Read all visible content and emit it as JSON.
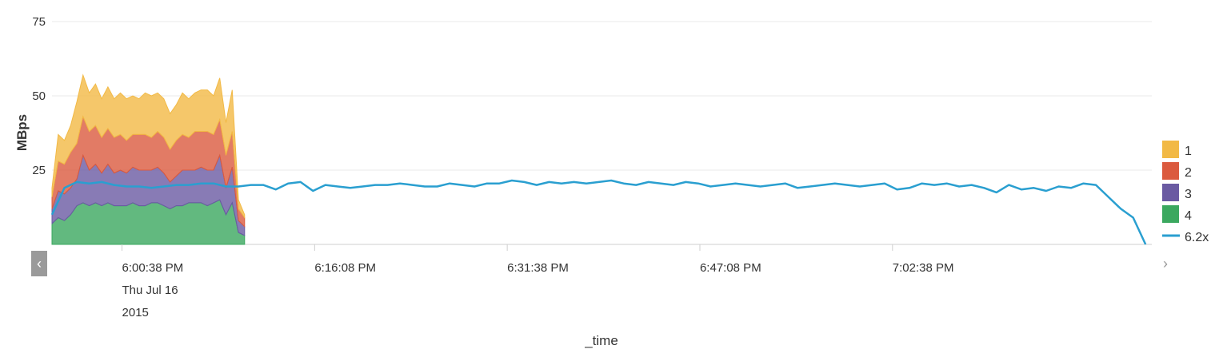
{
  "chart_data": {
    "type": "area",
    "stacked": true,
    "xlabel": "_time",
    "ylabel": "MBps",
    "ylim": [
      0,
      75
    ],
    "y_ticks": [
      "25",
      "50",
      "75"
    ],
    "x_range": [
      "5:55:00 PM",
      "7:23:30 PM"
    ],
    "x_ticks": [
      {
        "t": "6:00:38 PM",
        "lines": [
          "6:00:38 PM",
          "Thu Jul 16",
          "2015"
        ]
      },
      {
        "t": "6:16:08 PM",
        "lines": [
          "6:16:08 PM"
        ]
      },
      {
        "t": "6:31:38 PM",
        "lines": [
          "6:31:38 PM"
        ]
      },
      {
        "t": "6:47:08 PM",
        "lines": [
          "6:47:08 PM"
        ]
      },
      {
        "t": "7:02:38 PM",
        "lines": [
          "7:02:38 PM"
        ]
      }
    ],
    "grid": true,
    "legend_position": "right",
    "area_x": [
      "5:55:00 PM",
      "5:55:30 PM",
      "5:56:00 PM",
      "5:56:30 PM",
      "5:57:00 PM",
      "5:57:30 PM",
      "5:58:00 PM",
      "5:58:30 PM",
      "5:59:00 PM",
      "5:59:30 PM",
      "6:00:00 PM",
      "6:00:30 PM",
      "6:01:00 PM",
      "6:01:30 PM",
      "6:02:00 PM",
      "6:02:30 PM",
      "6:03:00 PM",
      "6:03:30 PM",
      "6:04:00 PM",
      "6:04:30 PM",
      "6:05:00 PM",
      "6:05:30 PM",
      "6:06:00 PM",
      "6:06:30 PM",
      "6:07:00 PM",
      "6:07:30 PM",
      "6:08:00 PM",
      "6:08:30 PM",
      "6:09:00 PM",
      "6:09:30 PM",
      "6:10:00 PM",
      "6:10:30 PM"
    ],
    "area_series": [
      {
        "name": "4",
        "color": "#3ba85f",
        "values": [
          7,
          9,
          8,
          10,
          13,
          14,
          13,
          14,
          13,
          14,
          13,
          13,
          13,
          14,
          13,
          13,
          14,
          14,
          13,
          12,
          13,
          13,
          14,
          14,
          14,
          13,
          14,
          15,
          10,
          14,
          4,
          3
        ]
      },
      {
        "name": "3",
        "color": "#6a5aa2",
        "values": [
          5,
          9,
          9,
          9,
          9,
          16,
          12,
          13,
          11,
          13,
          11,
          12,
          11,
          12,
          12,
          12,
          11,
          12,
          11,
          9,
          10,
          12,
          11,
          11,
          12,
          12,
          11,
          15,
          9,
          12,
          4,
          3
        ]
      },
      {
        "name": "2",
        "color": "#db5a3e",
        "values": [
          4,
          10,
          10,
          12,
          12,
          13,
          13,
          13,
          12,
          12,
          12,
          12,
          11,
          11,
          12,
          12,
          11,
          12,
          12,
          11,
          12,
          12,
          11,
          13,
          12,
          13,
          12,
          12,
          11,
          12,
          4,
          3
        ]
      },
      {
        "name": "1",
        "color": "#f2b945",
        "values": [
          3,
          9,
          8,
          9,
          14,
          14,
          13,
          14,
          13,
          14,
          13,
          14,
          14,
          13,
          12,
          14,
          14,
          13,
          13,
          12,
          12,
          14,
          13,
          13,
          14,
          14,
          13,
          14,
          11,
          14,
          3,
          1
        ]
      }
    ],
    "line_series": {
      "name": "6.2x",
      "color": "#2a9fd0",
      "x": [
        "5:55:00 PM",
        "5:56:00 PM",
        "5:57:00 PM",
        "5:58:00 PM",
        "5:59:00 PM",
        "6:00:00 PM",
        "6:01:00 PM",
        "6:02:00 PM",
        "6:03:00 PM",
        "6:04:00 PM",
        "6:05:00 PM",
        "6:06:00 PM",
        "6:07:00 PM",
        "6:08:00 PM",
        "6:09:00 PM",
        "6:10:00 PM",
        "6:11:00 PM",
        "6:12:00 PM",
        "6:13:00 PM",
        "6:14:00 PM",
        "6:15:00 PM",
        "6:16:00 PM",
        "6:17:00 PM",
        "6:18:00 PM",
        "6:19:00 PM",
        "6:20:00 PM",
        "6:21:00 PM",
        "6:22:00 PM",
        "6:23:00 PM",
        "6:24:00 PM",
        "6:25:00 PM",
        "6:26:00 PM",
        "6:27:00 PM",
        "6:28:00 PM",
        "6:29:00 PM",
        "6:30:00 PM",
        "6:31:00 PM",
        "6:32:00 PM",
        "6:33:00 PM",
        "6:34:00 PM",
        "6:35:00 PM",
        "6:36:00 PM",
        "6:37:00 PM",
        "6:38:00 PM",
        "6:39:00 PM",
        "6:40:00 PM",
        "6:41:00 PM",
        "6:42:00 PM",
        "6:43:00 PM",
        "6:44:00 PM",
        "6:45:00 PM",
        "6:46:00 PM",
        "6:47:00 PM",
        "6:48:00 PM",
        "6:49:00 PM",
        "6:50:00 PM",
        "6:51:00 PM",
        "6:52:00 PM",
        "6:53:00 PM",
        "6:54:00 PM",
        "6:55:00 PM",
        "6:56:00 PM",
        "6:57:00 PM",
        "6:58:00 PM",
        "6:59:00 PM",
        "7:00:00 PM",
        "7:01:00 PM",
        "7:02:00 PM",
        "7:03:00 PM",
        "7:04:00 PM",
        "7:05:00 PM",
        "7:06:00 PM",
        "7:07:00 PM",
        "7:08:00 PM",
        "7:09:00 PM",
        "7:10:00 PM",
        "7:11:00 PM",
        "7:12:00 PM",
        "7:13:00 PM",
        "7:14:00 PM",
        "7:15:00 PM",
        "7:16:00 PM",
        "7:17:00 PM",
        "7:18:00 PM",
        "7:19:00 PM",
        "7:20:00 PM",
        "7:21:00 PM",
        "7:22:00 PM",
        "7:23:00 PM"
      ],
      "values": [
        10,
        19,
        21,
        20.5,
        21,
        20,
        19.5,
        19.5,
        19,
        19.5,
        20,
        20,
        20.5,
        20.5,
        19.5,
        19.5,
        20,
        20,
        18.5,
        20.5,
        21,
        18,
        20,
        19.5,
        19,
        19.5,
        20,
        20,
        20.5,
        20,
        19.5,
        19.5,
        20.5,
        20,
        19.5,
        20.5,
        20.5,
        21.5,
        21,
        20,
        21,
        20.5,
        21,
        20.5,
        21,
        21.5,
        20.5,
        20,
        21,
        20.5,
        20,
        21,
        20.5,
        19.5,
        20,
        20.5,
        20,
        19.5,
        20,
        20.5,
        19,
        19.5,
        20,
        20.5,
        20,
        19.5,
        20,
        20.5,
        18.5,
        19,
        20.5,
        20,
        20.5,
        19.5,
        20,
        19,
        17.5,
        20,
        18.5,
        19,
        18,
        19.5,
        19,
        20.5,
        20,
        16,
        12,
        9,
        0
      ]
    }
  },
  "navigation": {
    "prev_icon": "chevron-left-icon",
    "next_icon": "chevron-right-icon",
    "prev_glyph": "‹",
    "next_glyph": "›"
  }
}
